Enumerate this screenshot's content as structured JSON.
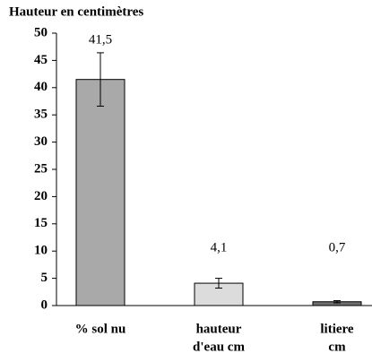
{
  "chart_data": {
    "type": "bar",
    "title": "Hauteur en centimètres",
    "categories": [
      [
        "% sol nu"
      ],
      [
        "hauteur",
        "d'eau cm"
      ],
      [
        "litiere",
        "cm"
      ]
    ],
    "values": [
      41.5,
      4.1,
      0.7
    ],
    "value_labels": [
      "41,5",
      "4,1",
      "0,7"
    ],
    "errors": [
      4.9,
      0.9,
      0.2
    ],
    "colors": [
      "#a9a9a9",
      "#dcdcdc",
      "#6f6f6f"
    ],
    "ylim": [
      0,
      50
    ],
    "yticks": [
      0,
      5,
      10,
      15,
      20,
      25,
      30,
      35,
      40,
      45,
      50
    ]
  }
}
